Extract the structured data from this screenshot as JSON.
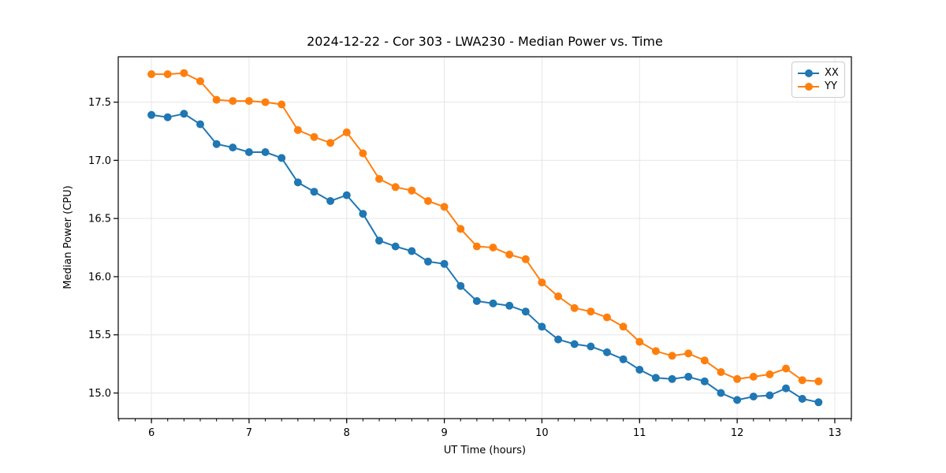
{
  "title": "2024-12-22 - Cor 303 - LWA230 - Median Power vs. Time",
  "axes": {
    "xlabel": "UT Time (hours)",
    "ylabel": "Median Power (CPU)"
  },
  "legend": {
    "items": [
      {
        "label": "XX",
        "color": "#1f77b4"
      },
      {
        "label": "YY",
        "color": "#ff7f0e"
      }
    ]
  },
  "colors": {
    "series_xx": "#1f77b4",
    "series_yy": "#ff7f0e",
    "grid": "#e6e6e6",
    "spine": "#000000",
    "background": "#ffffff"
  },
  "chart_data": {
    "type": "line",
    "title": "2024-12-22 - Cor 303 - LWA230 - Median Power vs. Time",
    "xlabel": "UT Time (hours)",
    "ylabel": "Median Power (CPU)",
    "xlim": [
      5.66,
      13.17
    ],
    "ylim": [
      14.78,
      17.89
    ],
    "grid": true,
    "legend_position": "upper right",
    "x_ticks": [
      6,
      7,
      8,
      9,
      10,
      11,
      12,
      13
    ],
    "y_ticks": [
      15.0,
      15.5,
      16.0,
      16.5,
      17.0,
      17.5
    ],
    "x_minor_tick_step": 0.166667,
    "marker": "circle",
    "x": [
      6.0,
      6.1667,
      6.3333,
      6.5,
      6.6667,
      6.8333,
      7.0,
      7.1667,
      7.3333,
      7.5,
      7.6667,
      7.8333,
      8.0,
      8.1667,
      8.3333,
      8.5,
      8.6667,
      8.8333,
      9.0,
      9.1667,
      9.3333,
      9.5,
      9.6667,
      9.8333,
      10.0,
      10.1667,
      10.3333,
      10.5,
      10.6667,
      10.8333,
      11.0,
      11.1667,
      11.3333,
      11.5,
      11.6667,
      11.8333,
      12.0,
      12.1667,
      12.3333,
      12.5,
      12.6667,
      12.8333
    ],
    "series": [
      {
        "name": "XX",
        "color": "#1f77b4",
        "values": [
          17.39,
          17.37,
          17.4,
          17.31,
          17.14,
          17.11,
          17.07,
          17.07,
          17.02,
          16.81,
          16.73,
          16.65,
          16.7,
          16.54,
          16.31,
          16.26,
          16.22,
          16.13,
          16.11,
          15.92,
          15.79,
          15.77,
          15.75,
          15.7,
          15.57,
          15.46,
          15.42,
          15.4,
          15.35,
          15.29,
          15.2,
          15.13,
          15.12,
          15.14,
          15.1,
          15.0,
          14.94,
          14.97,
          14.98,
          15.04,
          14.95,
          14.92
        ]
      },
      {
        "name": "YY",
        "color": "#ff7f0e",
        "values": [
          17.74,
          17.74,
          17.75,
          17.68,
          17.52,
          17.51,
          17.51,
          17.5,
          17.48,
          17.26,
          17.2,
          17.15,
          17.24,
          17.06,
          16.84,
          16.77,
          16.74,
          16.65,
          16.6,
          16.41,
          16.26,
          16.25,
          16.19,
          16.15,
          15.95,
          15.83,
          15.73,
          15.7,
          15.65,
          15.57,
          15.44,
          15.36,
          15.32,
          15.34,
          15.28,
          15.18,
          15.12,
          15.14,
          15.16,
          15.21,
          15.11,
          15.1
        ]
      }
    ]
  }
}
